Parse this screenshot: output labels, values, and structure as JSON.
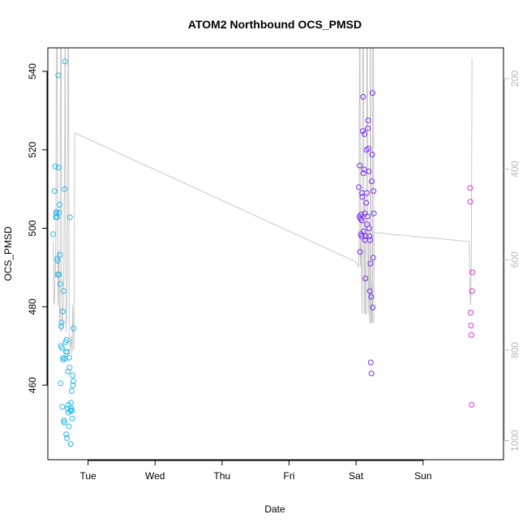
{
  "chart_data": {
    "type": "scatter",
    "title": "ATOM2 Northbound OCS_PMSD",
    "xlabel": "Date",
    "ylabel": "OCS_PMSD",
    "x_unit": "days since Tue 00:00",
    "xlim": [
      -0.6,
      6.2
    ],
    "ylim": [
      441,
      546
    ],
    "x_ticks": [
      {
        "label": "Tue",
        "value": 0
      },
      {
        "label": "Wed",
        "value": 1
      },
      {
        "label": "Thu",
        "value": 2
      },
      {
        "label": "Fri",
        "value": 3
      },
      {
        "label": "Sat",
        "value": 4
      },
      {
        "label": "Sun",
        "value": 5
      }
    ],
    "y_ticks": [
      460,
      480,
      500,
      520,
      540
    ],
    "right_axis": {
      "ticks": [
        200,
        400,
        600,
        800,
        1000
      ],
      "lim": [
        132,
        1042
      ],
      "color": "#b8b8b8",
      "reversed": true
    },
    "grid": false,
    "legend": "none",
    "series": [
      {
        "color": "#29b6e8",
        "points": [
          [
            -0.52,
            498.5
          ],
          [
            -0.5,
            509.5
          ],
          [
            -0.49,
            515.8
          ],
          [
            -0.48,
            502.8
          ],
          [
            -0.475,
            503.8
          ],
          [
            -0.47,
            504.2
          ],
          [
            -0.465,
            502.8
          ],
          [
            -0.46,
            492.2
          ],
          [
            -0.455,
            491.7
          ],
          [
            -0.45,
            488.2
          ],
          [
            -0.445,
            539
          ],
          [
            -0.44,
            515.5
          ],
          [
            -0.435,
            488.2
          ],
          [
            -0.43,
            504
          ],
          [
            -0.425,
            506
          ],
          [
            -0.42,
            493.2
          ],
          [
            -0.415,
            485.8
          ],
          [
            -0.41,
            460.5
          ],
          [
            -0.405,
            470
          ],
          [
            -0.4,
            475
          ],
          [
            -0.395,
            476
          ],
          [
            -0.39,
            469.5
          ],
          [
            -0.385,
            454.5
          ],
          [
            -0.38,
            478.8
          ],
          [
            -0.375,
            467
          ],
          [
            -0.37,
            466.5
          ],
          [
            -0.365,
            484
          ],
          [
            -0.36,
            451
          ],
          [
            -0.355,
            450.5
          ],
          [
            -0.35,
            510
          ],
          [
            -0.345,
            542.5
          ],
          [
            -0.34,
            466.8
          ],
          [
            -0.335,
            471
          ],
          [
            -0.33,
            468.5
          ],
          [
            -0.325,
            447.5
          ],
          [
            -0.32,
            471.5
          ],
          [
            -0.315,
            446.5
          ],
          [
            -0.31,
            468.5
          ],
          [
            -0.305,
            454
          ],
          [
            -0.3,
            463.5
          ],
          [
            -0.295,
            455
          ],
          [
            -0.29,
            453
          ],
          [
            -0.285,
            449.5
          ],
          [
            -0.28,
            467
          ],
          [
            -0.275,
            464.5
          ],
          [
            -0.27,
            502.8
          ],
          [
            -0.265,
            453.5
          ],
          [
            -0.26,
            445
          ],
          [
            -0.255,
            455.5
          ],
          [
            -0.25,
            454
          ],
          [
            -0.245,
            458.5
          ],
          [
            -0.24,
            453.5
          ],
          [
            -0.235,
            451.5
          ],
          [
            -0.23,
            462.5
          ],
          [
            -0.225,
            460
          ],
          [
            -0.22,
            461
          ],
          [
            -0.215,
            474.5
          ]
        ]
      },
      {
        "color": "#7a2ef0",
        "points": [
          [
            4.04,
            510.5
          ],
          [
            4.05,
            503
          ],
          [
            4.055,
            516
          ],
          [
            4.06,
            494
          ],
          [
            4.065,
            502.5
          ],
          [
            4.07,
            498.5
          ],
          [
            4.075,
            503.5
          ],
          [
            4.08,
            498
          ],
          [
            4.085,
            502
          ],
          [
            4.09,
            509
          ],
          [
            4.095,
            508
          ],
          [
            4.1,
            524.8
          ],
          [
            4.105,
            533.5
          ],
          [
            4.11,
            514
          ],
          [
            4.115,
            499.2
          ],
          [
            4.12,
            515
          ],
          [
            4.125,
            524
          ],
          [
            4.13,
            503.8
          ],
          [
            4.135,
            497
          ],
          [
            4.14,
            487.2
          ],
          [
            4.145,
            498
          ],
          [
            4.15,
            506.5
          ],
          [
            4.155,
            520
          ],
          [
            4.16,
            509
          ],
          [
            4.165,
            501
          ],
          [
            4.17,
            503
          ],
          [
            4.175,
            525.5
          ],
          [
            4.18,
            527.5
          ],
          [
            4.185,
            520.3
          ],
          [
            4.19,
            514.5
          ],
          [
            4.195,
            500
          ],
          [
            4.2,
            498
          ],
          [
            4.205,
            484
          ],
          [
            4.21,
            497
          ],
          [
            4.215,
            491
          ],
          [
            4.22,
            465.8
          ],
          [
            4.225,
            482.5
          ],
          [
            4.23,
            463
          ],
          [
            4.235,
            512
          ],
          [
            4.24,
            518.8
          ],
          [
            4.245,
            534.5
          ],
          [
            4.25,
            479.8
          ],
          [
            4.255,
            492.5
          ],
          [
            4.26,
            509.5
          ],
          [
            4.265,
            503.8
          ]
        ]
      },
      {
        "color": "#e02ee0",
        "points": [
          [
            5.7,
            510.3
          ],
          [
            5.705,
            506.8
          ],
          [
            5.71,
            478.5
          ],
          [
            5.715,
            475.2
          ],
          [
            5.72,
            472.8
          ],
          [
            5.725,
            455
          ],
          [
            5.73,
            484
          ],
          [
            5.735,
            488.8
          ]
        ]
      }
    ],
    "secondary_line": {
      "color": "#c8c8c8",
      "axis": "right",
      "points": [
        [
          -0.52,
          560
        ],
        [
          -0.51,
          700
        ],
        [
          -0.5,
          690
        ],
        [
          -0.49,
          590
        ],
        [
          -0.485,
          640
        ],
        [
          -0.48,
          540
        ],
        [
          -0.47,
          132
        ],
        [
          -0.46,
          132
        ],
        [
          -0.45,
          700
        ],
        [
          -0.44,
          580
        ],
        [
          -0.43,
          700
        ],
        [
          -0.42,
          760
        ],
        [
          -0.41,
          132
        ],
        [
          -0.4,
          132
        ],
        [
          -0.39,
          760
        ],
        [
          -0.37,
          700
        ],
        [
          -0.36,
          620
        ],
        [
          -0.355,
          480
        ],
        [
          -0.35,
          400
        ],
        [
          -0.345,
          132
        ],
        [
          -0.34,
          132
        ],
        [
          -0.33,
          760
        ],
        [
          -0.32,
          730
        ],
        [
          -0.31,
          660
        ],
        [
          -0.3,
          132
        ],
        [
          -0.29,
          132
        ],
        [
          -0.28,
          760
        ],
        [
          -0.27,
          800
        ],
        [
          -0.26,
          780
        ],
        [
          -0.25,
          770
        ],
        [
          -0.24,
          810
        ],
        [
          -0.23,
          700
        ],
        [
          -0.21,
          800
        ],
        [
          -0.2,
          320
        ],
        [
          4.0,
          605
        ],
        [
          4.04,
          615
        ],
        [
          4.045,
          570
        ],
        [
          4.05,
          132
        ],
        [
          4.06,
          132
        ],
        [
          4.065,
          615
        ],
        [
          4.07,
          510
        ],
        [
          4.08,
          615
        ],
        [
          4.09,
          720
        ],
        [
          4.1,
          132
        ],
        [
          4.11,
          132
        ],
        [
          4.12,
          720
        ],
        [
          4.13,
          460
        ],
        [
          4.14,
          720
        ],
        [
          4.15,
          720
        ],
        [
          4.16,
          132
        ],
        [
          4.17,
          132
        ],
        [
          4.18,
          720
        ],
        [
          4.19,
          560
        ],
        [
          4.2,
          700
        ],
        [
          4.205,
          740
        ],
        [
          4.21,
          740
        ],
        [
          4.215,
          132
        ],
        [
          4.22,
          132
        ],
        [
          4.225,
          740
        ],
        [
          4.23,
          650
        ],
        [
          4.24,
          740
        ],
        [
          4.245,
          740
        ],
        [
          4.25,
          132
        ],
        [
          4.26,
          132
        ],
        [
          4.265,
          740
        ],
        [
          4.27,
          540
        ],
        [
          5.68,
          560
        ],
        [
          5.69,
          560
        ],
        [
          5.7,
          680
        ],
        [
          5.71,
          700
        ],
        [
          5.72,
          600
        ],
        [
          5.73,
          155
        ]
      ]
    }
  }
}
